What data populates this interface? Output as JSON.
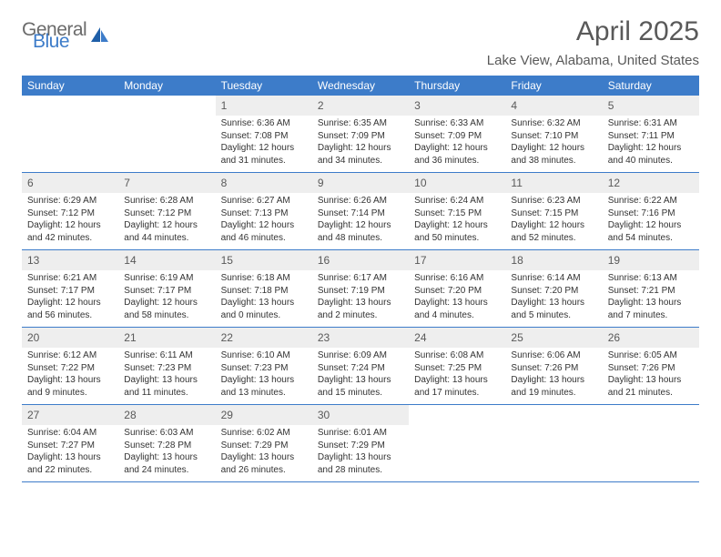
{
  "logo": {
    "general": "General",
    "blue": "Blue"
  },
  "title": "April 2025",
  "location": "Lake View, Alabama, United States",
  "colors": {
    "header_bg": "#3d7cc9",
    "header_text": "#ffffff",
    "daynum_bg": "#eeeeee",
    "divider": "#3d7cc9",
    "text": "#333333",
    "title_text": "#595959"
  },
  "dayNames": [
    "Sunday",
    "Monday",
    "Tuesday",
    "Wednesday",
    "Thursday",
    "Friday",
    "Saturday"
  ],
  "grid": {
    "startDayIndex": 2,
    "daysInMonth": 30
  },
  "days": {
    "1": {
      "sunrise": "6:36 AM",
      "sunset": "7:08 PM",
      "daylight": "12 hours and 31 minutes."
    },
    "2": {
      "sunrise": "6:35 AM",
      "sunset": "7:09 PM",
      "daylight": "12 hours and 34 minutes."
    },
    "3": {
      "sunrise": "6:33 AM",
      "sunset": "7:09 PM",
      "daylight": "12 hours and 36 minutes."
    },
    "4": {
      "sunrise": "6:32 AM",
      "sunset": "7:10 PM",
      "daylight": "12 hours and 38 minutes."
    },
    "5": {
      "sunrise": "6:31 AM",
      "sunset": "7:11 PM",
      "daylight": "12 hours and 40 minutes."
    },
    "6": {
      "sunrise": "6:29 AM",
      "sunset": "7:12 PM",
      "daylight": "12 hours and 42 minutes."
    },
    "7": {
      "sunrise": "6:28 AM",
      "sunset": "7:12 PM",
      "daylight": "12 hours and 44 minutes."
    },
    "8": {
      "sunrise": "6:27 AM",
      "sunset": "7:13 PM",
      "daylight": "12 hours and 46 minutes."
    },
    "9": {
      "sunrise": "6:26 AM",
      "sunset": "7:14 PM",
      "daylight": "12 hours and 48 minutes."
    },
    "10": {
      "sunrise": "6:24 AM",
      "sunset": "7:15 PM",
      "daylight": "12 hours and 50 minutes."
    },
    "11": {
      "sunrise": "6:23 AM",
      "sunset": "7:15 PM",
      "daylight": "12 hours and 52 minutes."
    },
    "12": {
      "sunrise": "6:22 AM",
      "sunset": "7:16 PM",
      "daylight": "12 hours and 54 minutes."
    },
    "13": {
      "sunrise": "6:21 AM",
      "sunset": "7:17 PM",
      "daylight": "12 hours and 56 minutes."
    },
    "14": {
      "sunrise": "6:19 AM",
      "sunset": "7:17 PM",
      "daylight": "12 hours and 58 minutes."
    },
    "15": {
      "sunrise": "6:18 AM",
      "sunset": "7:18 PM",
      "daylight": "13 hours and 0 minutes."
    },
    "16": {
      "sunrise": "6:17 AM",
      "sunset": "7:19 PM",
      "daylight": "13 hours and 2 minutes."
    },
    "17": {
      "sunrise": "6:16 AM",
      "sunset": "7:20 PM",
      "daylight": "13 hours and 4 minutes."
    },
    "18": {
      "sunrise": "6:14 AM",
      "sunset": "7:20 PM",
      "daylight": "13 hours and 5 minutes."
    },
    "19": {
      "sunrise": "6:13 AM",
      "sunset": "7:21 PM",
      "daylight": "13 hours and 7 minutes."
    },
    "20": {
      "sunrise": "6:12 AM",
      "sunset": "7:22 PM",
      "daylight": "13 hours and 9 minutes."
    },
    "21": {
      "sunrise": "6:11 AM",
      "sunset": "7:23 PM",
      "daylight": "13 hours and 11 minutes."
    },
    "22": {
      "sunrise": "6:10 AM",
      "sunset": "7:23 PM",
      "daylight": "13 hours and 13 minutes."
    },
    "23": {
      "sunrise": "6:09 AM",
      "sunset": "7:24 PM",
      "daylight": "13 hours and 15 minutes."
    },
    "24": {
      "sunrise": "6:08 AM",
      "sunset": "7:25 PM",
      "daylight": "13 hours and 17 minutes."
    },
    "25": {
      "sunrise": "6:06 AM",
      "sunset": "7:26 PM",
      "daylight": "13 hours and 19 minutes."
    },
    "26": {
      "sunrise": "6:05 AM",
      "sunset": "7:26 PM",
      "daylight": "13 hours and 21 minutes."
    },
    "27": {
      "sunrise": "6:04 AM",
      "sunset": "7:27 PM",
      "daylight": "13 hours and 22 minutes."
    },
    "28": {
      "sunrise": "6:03 AM",
      "sunset": "7:28 PM",
      "daylight": "13 hours and 24 minutes."
    },
    "29": {
      "sunrise": "6:02 AM",
      "sunset": "7:29 PM",
      "daylight": "13 hours and 26 minutes."
    },
    "30": {
      "sunrise": "6:01 AM",
      "sunset": "7:29 PM",
      "daylight": "13 hours and 28 minutes."
    }
  },
  "labels": {
    "sunrise": "Sunrise: ",
    "sunset": "Sunset: ",
    "daylight": "Daylight: "
  }
}
